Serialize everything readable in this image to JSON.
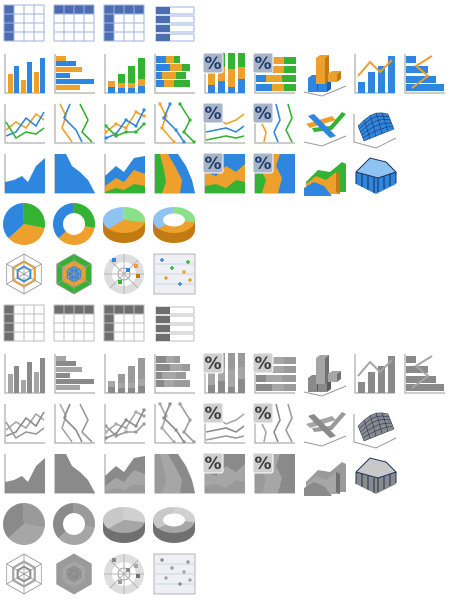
{
  "palettes": {
    "color": {
      "blue": "#2e86de",
      "blue_light": "#8fc4f2",
      "blue_dark": "#1a5fb4",
      "orange": "#eda02b",
      "orange_dark": "#c27a12",
      "green": "#34b233",
      "green_light": "#8be08a",
      "table_head": "#4d6db3",
      "table_line": "#9fb2dc",
      "pct_bg": "#a8b5c8",
      "pct_fg": "#1e3a6a"
    },
    "gray": {
      "blue": "#8a8a8a",
      "blue_light": "#c8c8c8",
      "blue_dark": "#5a5a5a",
      "orange": "#a6a6a6",
      "orange_dark": "#707070",
      "green": "#9a9a9a",
      "green_light": "#d0d0d0",
      "table_head": "#6e6e6e",
      "table_line": "#bdbdbd",
      "pct_bg": "#cfcfcf",
      "pct_fg": "#3a3a3a"
    }
  },
  "percent_glyph": "%",
  "sets": [
    {
      "name": "color",
      "rows": [
        [
          "table-grid",
          "table-wide",
          "table-split",
          "table-band"
        ],
        [
          "bar-clustered",
          "bar-horizontal",
          "bar-stacked",
          "bar-horizontal-stacked",
          "bar-percent",
          "bar-horizontal-percent",
          "bar-3d",
          "bar-line-combo",
          "bar-line-horizontal-combo"
        ],
        [
          "line-basic",
          "line-vertical",
          "line-markers",
          "line-vertical-markers",
          "line-percent",
          "line-vertical-percent",
          "line-3d",
          "surface-3d"
        ],
        [
          "area-basic",
          "area-vertical",
          "area-stacked",
          "area-vertical-stacked",
          "area-percent",
          "area-vertical-percent",
          "area-3d",
          "area-surface-3d"
        ],
        [
          "pie-flat",
          "doughnut-flat",
          "pie-3d",
          "doughnut-3d"
        ],
        [
          "radar-lines",
          "radar-filled",
          "polar",
          "scatter"
        ]
      ]
    },
    {
      "name": "gray",
      "rows": [
        [
          "table-grid",
          "table-wide",
          "table-split",
          "table-band"
        ],
        [
          "bar-clustered",
          "bar-horizontal",
          "bar-stacked",
          "bar-horizontal-stacked",
          "bar-percent",
          "bar-horizontal-percent",
          "bar-3d",
          "bar-line-combo",
          "bar-line-horizontal-combo"
        ],
        [
          "line-basic",
          "line-vertical",
          "line-markers",
          "line-vertical-markers",
          "line-percent",
          "line-vertical-percent",
          "line-3d",
          "surface-3d"
        ],
        [
          "area-basic",
          "area-vertical",
          "area-stacked",
          "area-vertical-stacked",
          "area-percent",
          "area-vertical-percent",
          "area-3d",
          "area-surface-3d"
        ],
        [
          "pie-flat",
          "doughnut-flat",
          "pie-3d",
          "doughnut-3d"
        ],
        [
          "radar-lines",
          "radar-filled",
          "polar",
          "scatter"
        ]
      ]
    }
  ]
}
